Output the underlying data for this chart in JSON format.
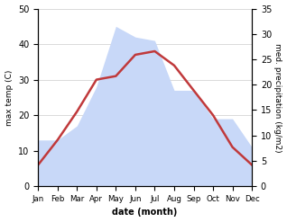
{
  "months": [
    "Jan",
    "Feb",
    "Mar",
    "Apr",
    "May",
    "Jun",
    "Jul",
    "Aug",
    "Sep",
    "Oct",
    "Nov",
    "Dec"
  ],
  "month_x": [
    1,
    2,
    3,
    4,
    5,
    6,
    7,
    8,
    9,
    10,
    11,
    12
  ],
  "temperature": [
    6,
    13,
    21,
    30,
    31,
    37,
    38,
    34,
    27,
    20,
    11,
    6
  ],
  "precipitation_left": [
    13,
    13,
    17,
    28,
    45,
    42,
    41,
    27,
    27,
    19,
    19,
    11
  ],
  "temp_color": "#c0393b",
  "precip_fill_color": "#c8d8f8",
  "precip_line_color": "#c8d8f8",
  "temp_ylim": [
    0,
    50
  ],
  "precip_ylim": [
    0,
    35
  ],
  "temp_yticks": [
    0,
    10,
    20,
    30,
    40,
    50
  ],
  "precip_yticks": [
    0,
    5,
    10,
    15,
    20,
    25,
    30,
    35
  ],
  "xlabel": "date (month)",
  "ylabel_left": "max temp (C)",
  "ylabel_right": "med. precipitation (kg/m2)",
  "bg_color": "#ffffff",
  "grid_color": "#cccccc"
}
